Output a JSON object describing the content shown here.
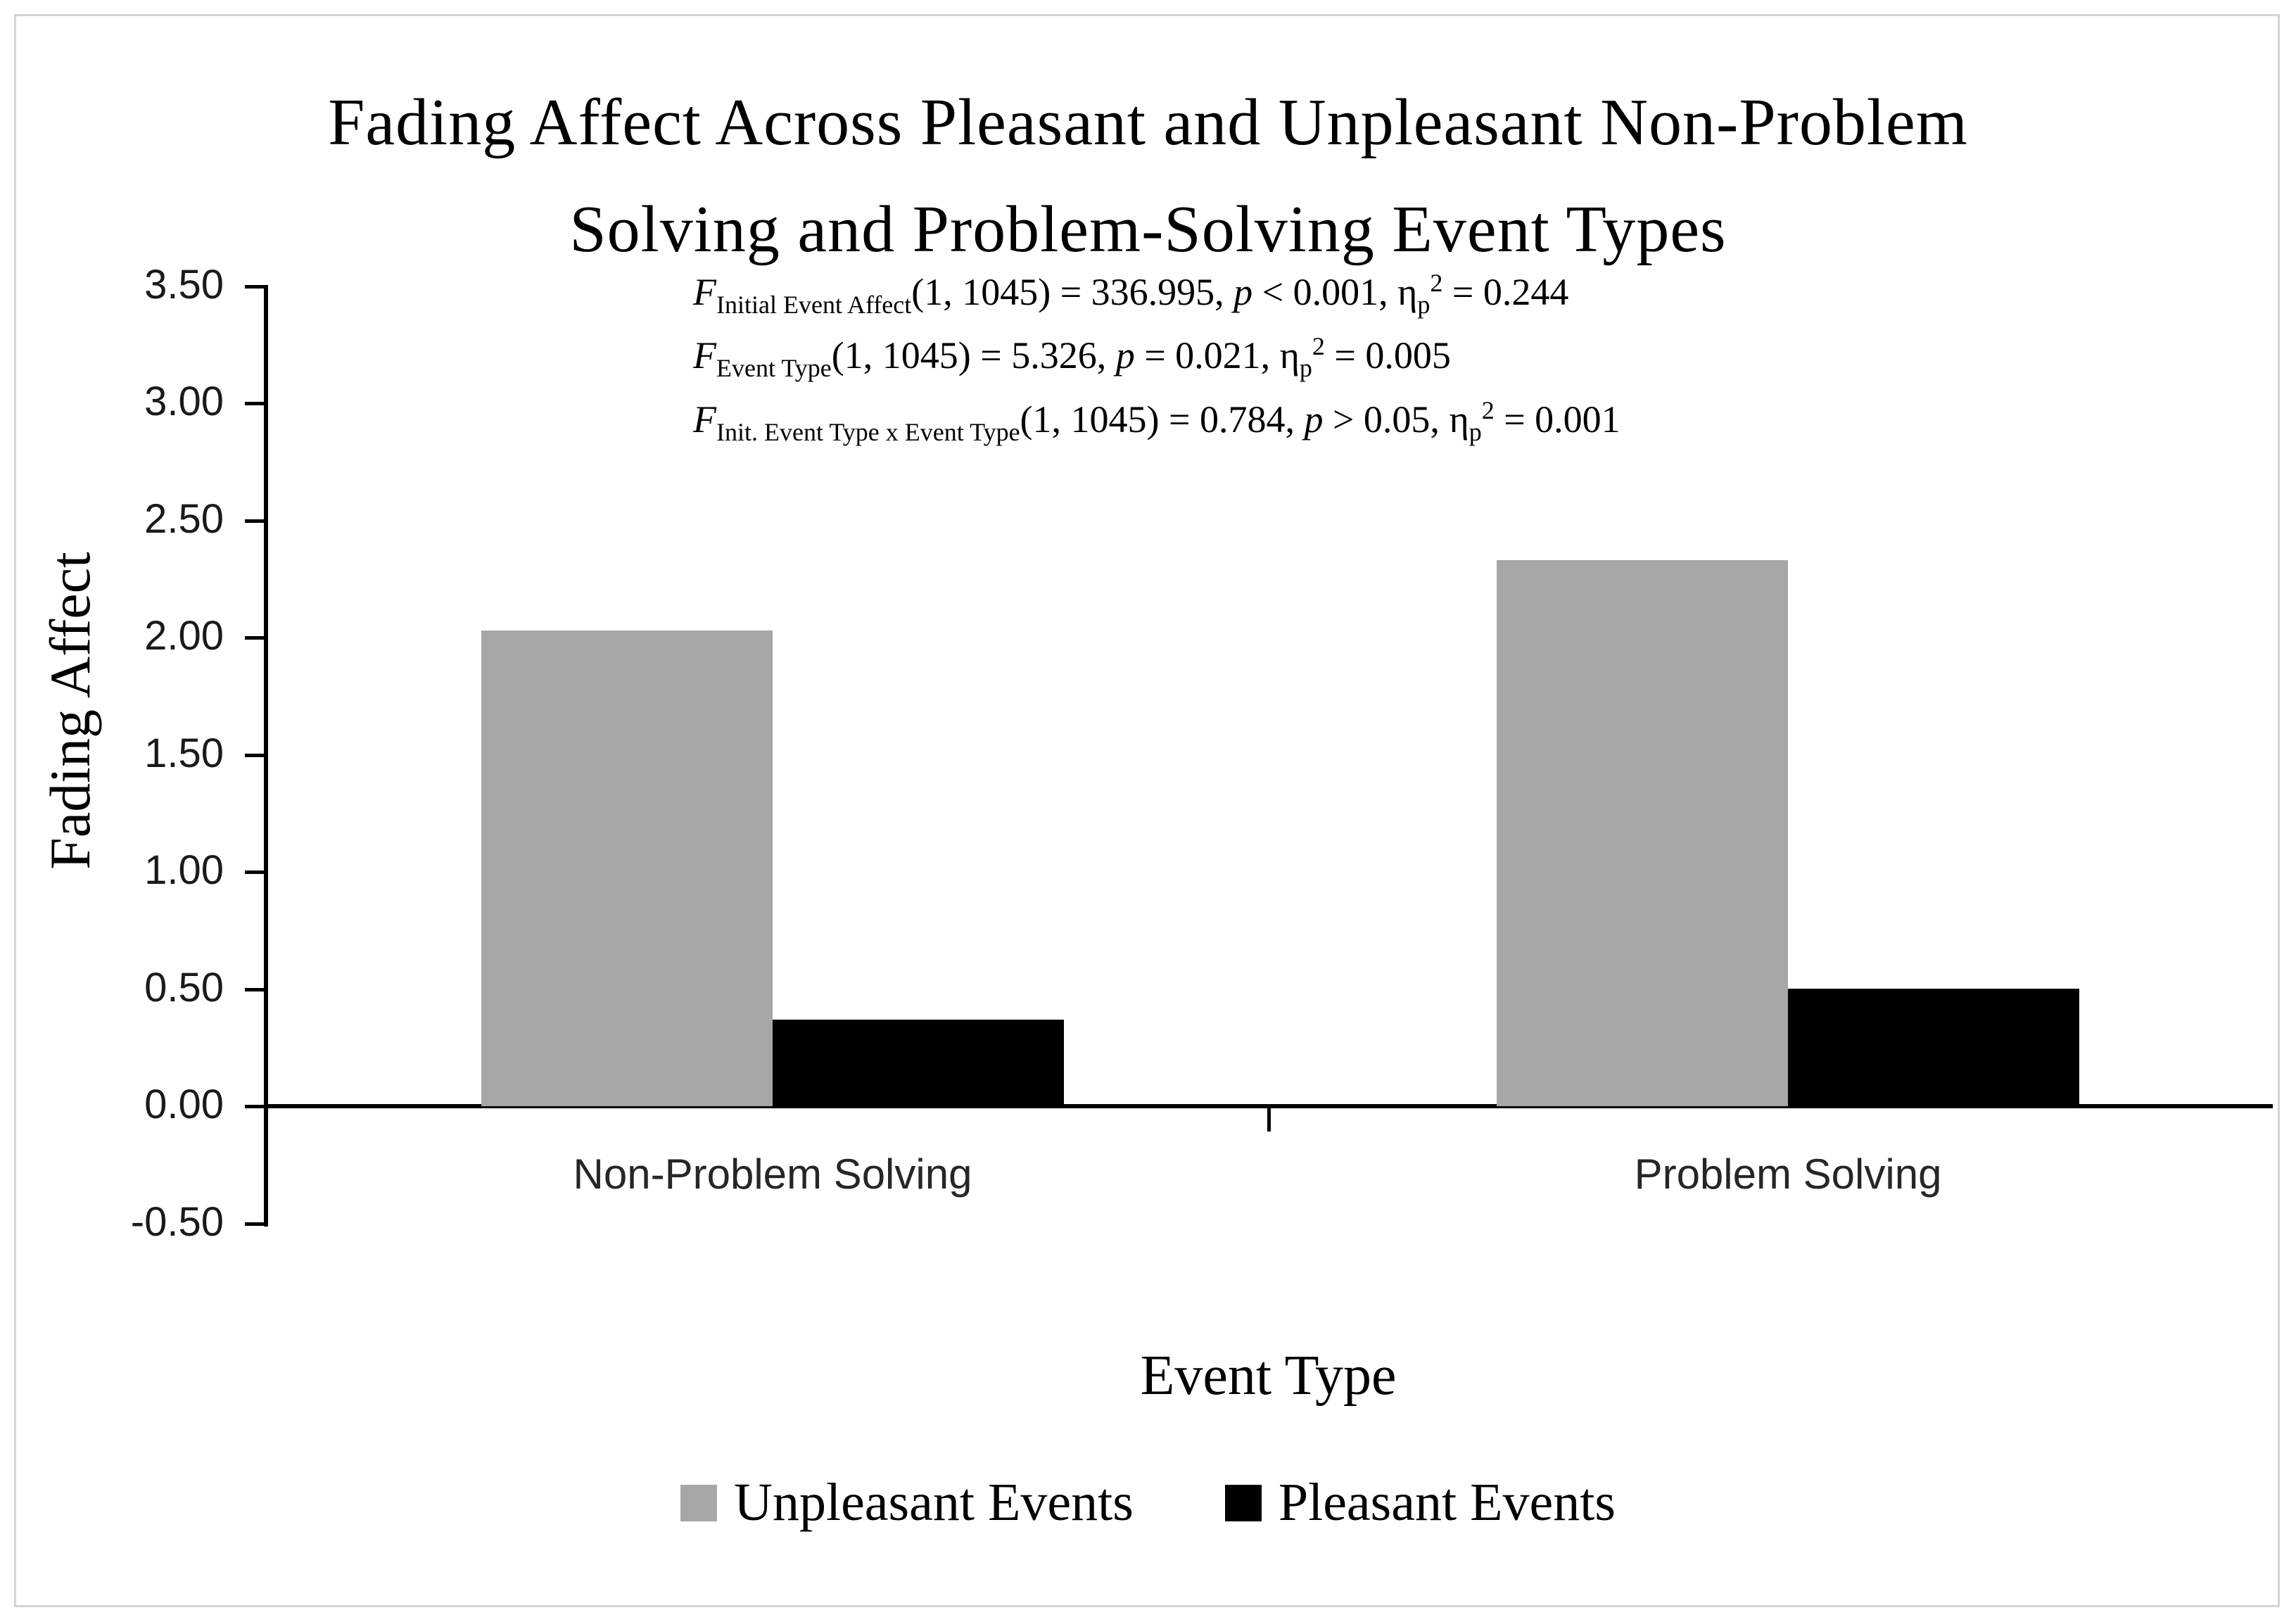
{
  "title": {
    "line1": "Fading Affect Across Pleasant and Unpleasant Non-Problem",
    "line2": "Solving and Problem-Solving Event Types"
  },
  "stats": {
    "lines": [
      {
        "f_symbol": "F",
        "f_sub": "Initial Event Affect",
        "f_rest": "(1, 1045) = 336.995, ",
        "p_symbol": "p",
        "p_rest": " < 0.001, ",
        "eta_symbol": "η",
        "eta_sub": "p",
        "eta_sup": "2",
        "eta_rest": " = 0.244"
      },
      {
        "f_symbol": "F",
        "f_sub": "Event Type",
        "f_rest": "(1, 1045) = 5.326, ",
        "p_symbol": "p",
        "p_rest": " = 0.021, ",
        "eta_symbol": "η",
        "eta_sub": "p",
        "eta_sup": "2",
        "eta_rest": " = 0.005"
      },
      {
        "f_symbol": "F",
        "f_sub": "Init. Event Type x Event Type",
        "f_rest": "(1, 1045) = 0.784, ",
        "p_symbol": "p",
        "p_rest": " > 0.05, ",
        "eta_symbol": "η",
        "eta_sub": "p",
        "eta_sup": "2",
        "eta_rest": " = 0.001"
      }
    ]
  },
  "chart_data": {
    "type": "bar",
    "title": "Fading Affect Across Pleasant and Unpleasant Non-Problem Solving and Problem-Solving Event Types",
    "categories": [
      "Non-Problem Solving",
      "Problem Solving"
    ],
    "series": [
      {
        "name": "Unpleasant Events",
        "color": "#A6A6A6",
        "values": [
          2.03,
          2.33
        ]
      },
      {
        "name": "Pleasant Events",
        "color": "#000000",
        "values": [
          0.37,
          0.5
        ]
      }
    ],
    "xlabel": "Event Type",
    "ylabel": "Fading Affect",
    "ylim": [
      -0.5,
      3.5
    ],
    "ytick_step": 0.5,
    "yticks": [
      "3.50",
      "3.00",
      "2.50",
      "2.00",
      "1.50",
      "1.00",
      "0.50",
      "0.00",
      "-0.50"
    ],
    "grid": false,
    "legend_position": "bottom",
    "annotations": [
      "F Initial Event Affect(1, 1045) = 336.995, p < 0.001, ηp2 = 0.244",
      "F Event Type(1, 1045) = 5.326, p = 0.021, ηp2 = 0.005",
      "F Init. Event Type x Event Type(1, 1045) = 0.784, p > 0.05, ηp2 = 0.001"
    ]
  }
}
